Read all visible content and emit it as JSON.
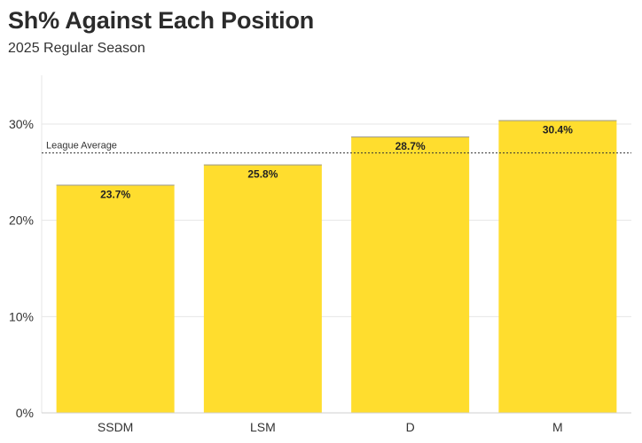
{
  "header": {
    "title": "Sh% Against Each Position",
    "subtitle": "2025 Regular Season"
  },
  "chart_data": {
    "type": "bar",
    "categories": [
      "SSDM",
      "LSM",
      "D",
      "M"
    ],
    "values": [
      23.7,
      25.8,
      28.7,
      30.4
    ],
    "value_labels": [
      "23.7%",
      "25.8%",
      "28.7%",
      "30.4%"
    ],
    "yticks": [
      0,
      10,
      20,
      30
    ],
    "ytick_labels": [
      "0%",
      "10%",
      "20%",
      "30%"
    ],
    "ylim": [
      0,
      35
    ],
    "reference_line": {
      "label": "League Average",
      "value": 27.0
    },
    "grid": true,
    "colors": {
      "bar": "#FFDD2E",
      "grid": "#e6e6e6",
      "reference": "#333333"
    }
  }
}
